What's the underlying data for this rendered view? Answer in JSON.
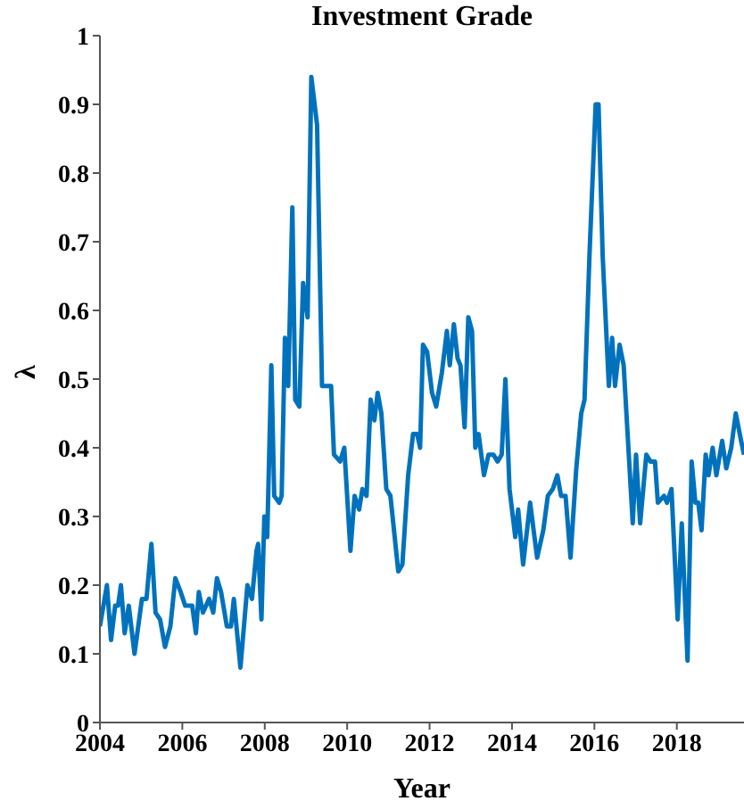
{
  "chart_data": {
    "type": "line",
    "title": "Investment Grade",
    "xlabel": "Year",
    "ylabel": "λ",
    "xlim": [
      2004,
      2019.63
    ],
    "xticks": [
      2004,
      2006,
      2008,
      2010,
      2012,
      2014,
      2016,
      2018
    ],
    "ylim": [
      0,
      1
    ],
    "yticks": [
      0,
      0.1,
      0.2,
      0.3,
      0.4,
      0.5,
      0.6,
      0.7,
      0.8,
      0.9,
      1
    ],
    "grid": false,
    "legend": false,
    "marker": "none",
    "line_style": "solid",
    "x": [
      2004.0,
      2004.17,
      2004.27,
      2004.37,
      2004.44,
      2004.51,
      2004.6,
      2004.7,
      2004.84,
      2005.02,
      2005.13,
      2005.25,
      2005.35,
      2005.46,
      2005.58,
      2005.71,
      2005.83,
      2005.96,
      2006.07,
      2006.24,
      2006.33,
      2006.4,
      2006.5,
      2006.65,
      2006.75,
      2006.84,
      2006.94,
      2007.08,
      2007.18,
      2007.25,
      2007.41,
      2007.58,
      2007.69,
      2007.8,
      2007.84,
      2007.92,
      2007.99,
      2008.06,
      2008.16,
      2008.23,
      2008.35,
      2008.41,
      2008.49,
      2008.57,
      2008.67,
      2008.74,
      2008.84,
      2008.93,
      2009.04,
      2009.13,
      2009.27,
      2009.39,
      2009.61,
      2009.68,
      2009.83,
      2009.93,
      2010.08,
      2010.18,
      2010.29,
      2010.37,
      2010.47,
      2010.57,
      2010.66,
      2010.74,
      2010.83,
      2010.95,
      2011.05,
      2011.24,
      2011.34,
      2011.48,
      2011.6,
      2011.7,
      2011.77,
      2011.84,
      2011.94,
      2012.06,
      2012.16,
      2012.3,
      2012.42,
      2012.49,
      2012.59,
      2012.68,
      2012.75,
      2012.85,
      2012.94,
      2013.03,
      2013.11,
      2013.19,
      2013.32,
      2013.43,
      2013.55,
      2013.65,
      2013.75,
      2013.84,
      2013.94,
      2014.08,
      2014.15,
      2014.27,
      2014.44,
      2014.61,
      2014.76,
      2014.87,
      2014.99,
      2015.1,
      2015.19,
      2015.3,
      2015.42,
      2015.56,
      2015.68,
      2015.76,
      2015.88,
      2016.03,
      2016.1,
      2016.2,
      2016.35,
      2016.43,
      2016.5,
      2016.61,
      2016.71,
      2016.93,
      2017.01,
      2017.11,
      2017.26,
      2017.36,
      2017.47,
      2017.54,
      2017.69,
      2017.76,
      2017.87,
      2018.02,
      2018.12,
      2018.26,
      2018.36,
      2018.45,
      2018.52,
      2018.6,
      2018.7,
      2018.77,
      2018.87,
      2018.96,
      2019.1,
      2019.2,
      2019.32,
      2019.43,
      2019.56,
      2019.63
    ],
    "series": [
      {
        "color": "#0072bd",
        "values": [
          0.14,
          0.2,
          0.12,
          0.17,
          0.17,
          0.2,
          0.13,
          0.17,
          0.1,
          0.18,
          0.18,
          0.26,
          0.16,
          0.15,
          0.11,
          0.14,
          0.21,
          0.19,
          0.17,
          0.17,
          0.13,
          0.19,
          0.16,
          0.18,
          0.16,
          0.21,
          0.19,
          0.14,
          0.14,
          0.18,
          0.08,
          0.2,
          0.18,
          0.25,
          0.26,
          0.15,
          0.3,
          0.27,
          0.52,
          0.33,
          0.32,
          0.33,
          0.56,
          0.49,
          0.75,
          0.47,
          0.46,
          0.64,
          0.59,
          0.94,
          0.87,
          0.49,
          0.49,
          0.39,
          0.38,
          0.4,
          0.25,
          0.33,
          0.31,
          0.34,
          0.33,
          0.47,
          0.44,
          0.48,
          0.45,
          0.34,
          0.33,
          0.22,
          0.23,
          0.36,
          0.42,
          0.42,
          0.4,
          0.55,
          0.54,
          0.48,
          0.46,
          0.51,
          0.57,
          0.52,
          0.58,
          0.53,
          0.52,
          0.43,
          0.59,
          0.57,
          0.4,
          0.42,
          0.36,
          0.39,
          0.39,
          0.38,
          0.39,
          0.5,
          0.34,
          0.27,
          0.31,
          0.23,
          0.32,
          0.24,
          0.28,
          0.33,
          0.34,
          0.36,
          0.33,
          0.33,
          0.24,
          0.37,
          0.45,
          0.47,
          0.68,
          0.9,
          0.9,
          0.68,
          0.49,
          0.56,
          0.49,
          0.55,
          0.52,
          0.29,
          0.39,
          0.29,
          0.39,
          0.38,
          0.38,
          0.32,
          0.33,
          0.32,
          0.34,
          0.15,
          0.29,
          0.09,
          0.38,
          0.32,
          0.32,
          0.28,
          0.39,
          0.36,
          0.4,
          0.36,
          0.41,
          0.37,
          0.4,
          0.45,
          0.41,
          0.39
        ]
      }
    ]
  }
}
